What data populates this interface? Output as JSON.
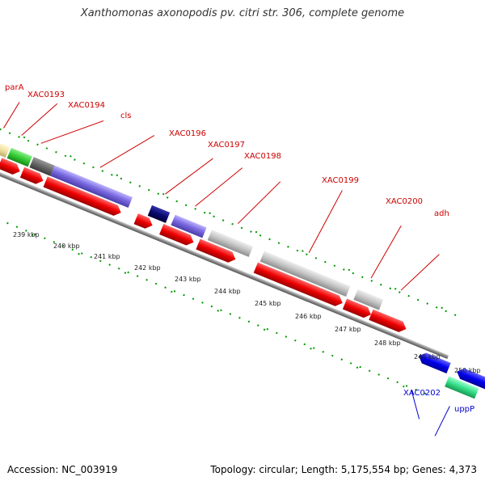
{
  "title": "Xanthomonas axonopodis pv. citri str. 306, complete genome",
  "footer": {
    "accession": "Accession: NC_003919",
    "topology": "Topology: circular; Length: 5,175,554 bp; Genes: 4,373"
  },
  "ticks": [
    "239 kbp",
    "240 kbp",
    "241 kbp",
    "242 kbp",
    "243 kbp",
    "244 kbp",
    "245 kbp",
    "246 kbp",
    "247 kbp",
    "248 kbp",
    "249 kbp",
    "250 kbp"
  ],
  "forward_labels": [
    "parA",
    "XAC0193",
    "XAC0194",
    "cls",
    "XAC0196",
    "XAC0197",
    "XAC0198",
    "XAC0199",
    "XAC0200",
    "adh"
  ],
  "reverse_labels": [
    "XAC0202",
    "uppP"
  ],
  "colors": {
    "forward_label": "#cc0000",
    "reverse_label": "#0000cc",
    "cds": "#ff0000",
    "tick": "#009900",
    "backbone": "#888888"
  }
}
